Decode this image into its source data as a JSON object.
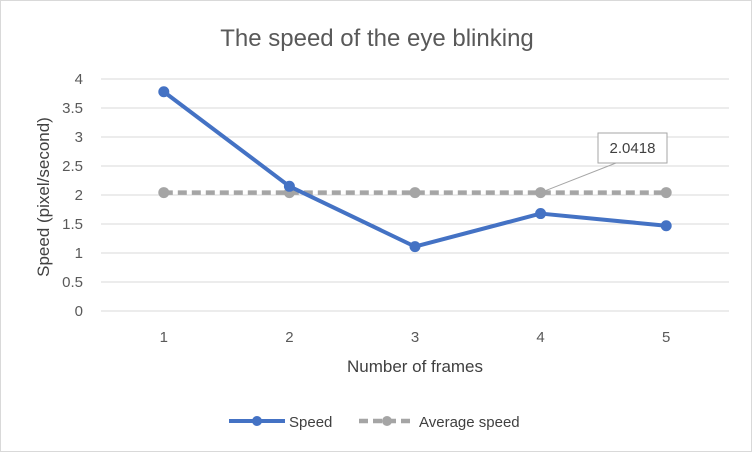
{
  "chart_data": {
    "type": "line",
    "title": "The speed of the eye blinking",
    "xlabel": "Number of frames",
    "ylabel": "Speed (pixel/second)",
    "categories": [
      "1",
      "2",
      "3",
      "4",
      "5"
    ],
    "ylim": [
      0,
      4
    ],
    "yticks": [
      "0",
      "0.5",
      "1",
      "1.5",
      "2",
      "2.5",
      "3",
      "3.5",
      "4"
    ],
    "grid": true,
    "legend_position": "bottom",
    "series": [
      {
        "name": "Speed",
        "values": [
          3.78,
          2.15,
          1.11,
          1.68,
          1.47
        ],
        "color": "#4472c4",
        "style": "solid",
        "marker": "circle"
      },
      {
        "name": "Average speed",
        "values": [
          2.0418,
          2.0418,
          2.0418,
          2.0418,
          2.0418
        ],
        "color": "#a5a5a5",
        "style": "dashed",
        "marker": "circle"
      }
    ],
    "annotation": {
      "text": "2.0418",
      "series": "Average speed",
      "category": "4"
    }
  }
}
